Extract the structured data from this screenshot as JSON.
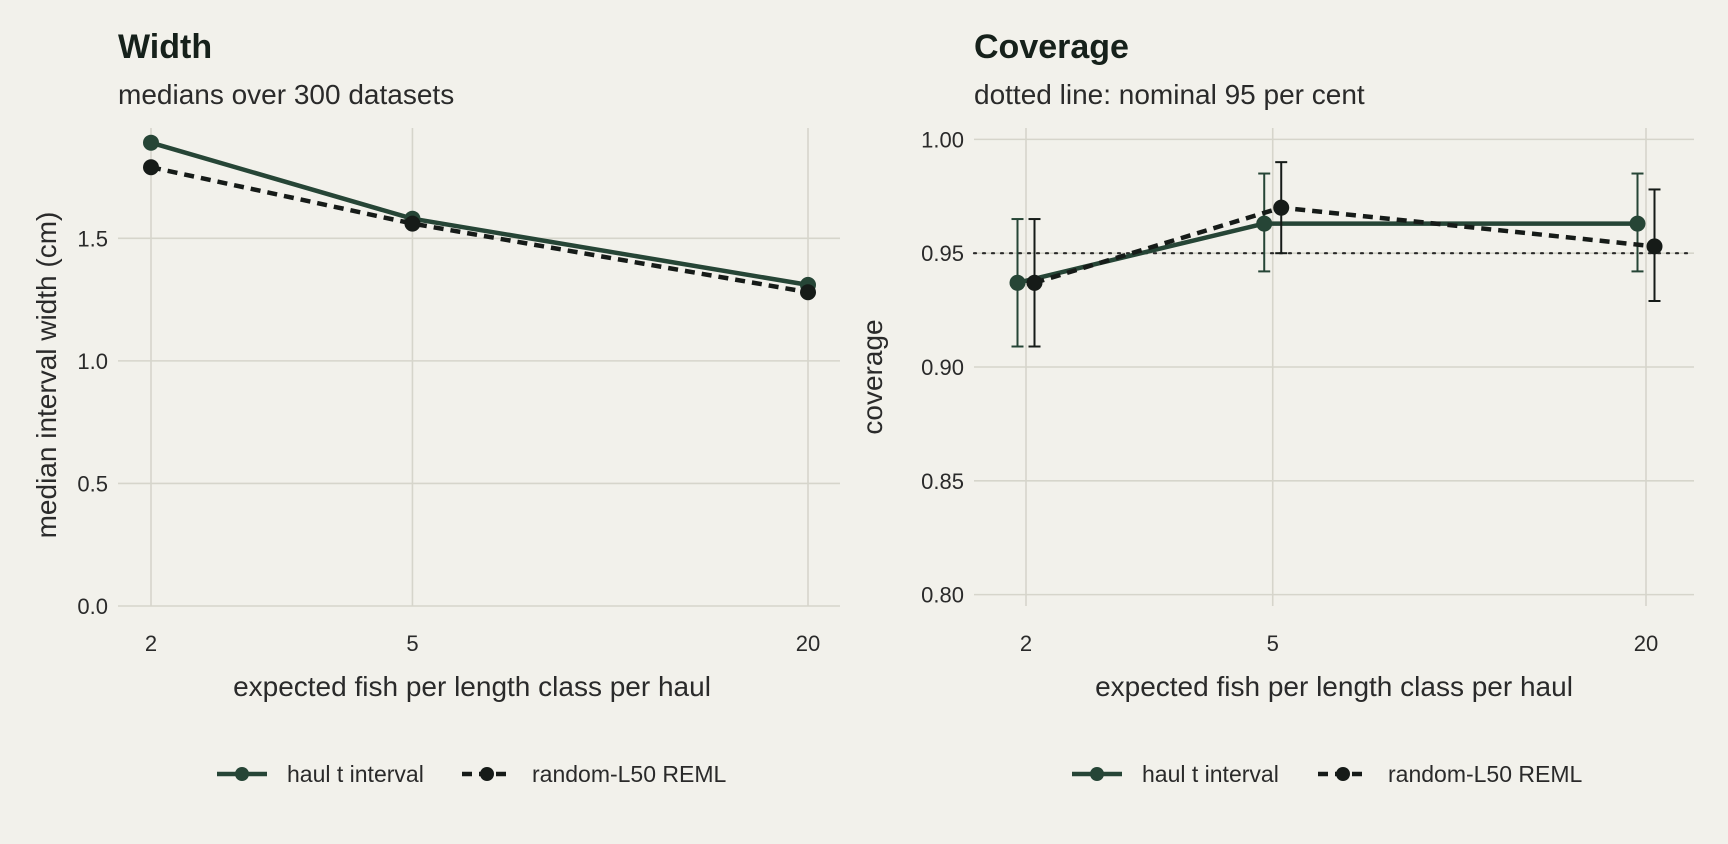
{
  "colors": {
    "background": "#f2f1eb",
    "grid": "#d6d5cb",
    "haul": "#264536",
    "random": "#161b18",
    "text": "#2a2a2a"
  },
  "chart_data": [
    {
      "type": "line",
      "title": "Width",
      "subtitle": "medians over 300 datasets",
      "xlabel": "expected fish per length class per haul",
      "ylabel": "median interval width (cm)",
      "x_scale": "log",
      "x": [
        2,
        5,
        20
      ],
      "x_ticks": [
        "2",
        "5",
        "20"
      ],
      "ylim": [
        0,
        1.95
      ],
      "y_ticks": [
        "0.0",
        "0.5",
        "1.0",
        "1.5"
      ],
      "grid": true,
      "legend_position": "bottom",
      "series": [
        {
          "name": "haul t interval",
          "line": "solid",
          "values": [
            1.89,
            1.58,
            1.31
          ]
        },
        {
          "name": "random-L50 REML",
          "line": "dashed",
          "values": [
            1.79,
            1.56,
            1.28
          ]
        }
      ]
    },
    {
      "type": "line",
      "title": "Coverage",
      "subtitle": "dotted line: nominal 95 per cent",
      "xlabel": "expected fish per length class per haul",
      "ylabel": "coverage",
      "x_scale": "log",
      "x": [
        2,
        5,
        20
      ],
      "x_ticks": [
        "2",
        "5",
        "20"
      ],
      "ylim": [
        0.795,
        1.005
      ],
      "y_ticks": [
        "0.80",
        "0.85",
        "0.90",
        "0.95",
        "1.00"
      ],
      "reference_line": 0.95,
      "grid": true,
      "legend_position": "bottom",
      "series": [
        {
          "name": "haul t interval",
          "line": "solid",
          "values": [
            0.937,
            0.963,
            0.963
          ],
          "lower": [
            0.909,
            0.942,
            0.942
          ],
          "upper": [
            0.965,
            0.985,
            0.985
          ]
        },
        {
          "name": "random-L50 REML",
          "line": "dashed",
          "values": [
            0.937,
            0.97,
            0.953
          ],
          "lower": [
            0.909,
            0.95,
            0.929
          ],
          "upper": [
            0.965,
            0.99,
            0.978
          ]
        }
      ]
    }
  ]
}
